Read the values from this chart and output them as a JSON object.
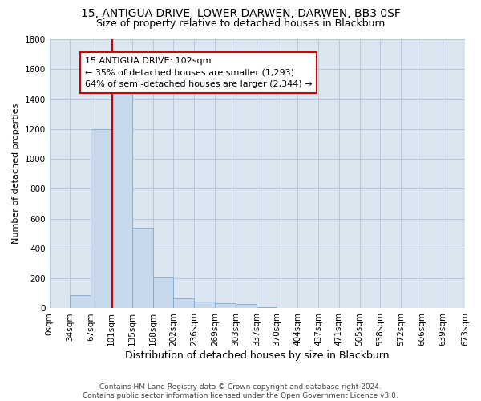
{
  "title1": "15, ANTIGUA DRIVE, LOWER DARWEN, DARWEN, BB3 0SF",
  "title2": "Size of property relative to detached houses in Blackburn",
  "xlabel": "Distribution of detached houses by size in Blackburn",
  "ylabel": "Number of detached properties",
  "bin_edges": [
    0,
    33.5,
    67,
    100.5,
    134,
    167.5,
    201,
    234.5,
    268,
    301.5,
    335,
    368.5,
    402,
    435.5,
    469,
    502.5,
    536,
    569.5,
    603,
    636.5,
    673
  ],
  "bin_labels": [
    "0sqm",
    "34sqm",
    "67sqm",
    "101sqm",
    "135sqm",
    "168sqm",
    "202sqm",
    "236sqm",
    "269sqm",
    "303sqm",
    "337sqm",
    "370sqm",
    "404sqm",
    "437sqm",
    "471sqm",
    "505sqm",
    "538sqm",
    "572sqm",
    "606sqm",
    "639sqm",
    "673sqm"
  ],
  "bar_values": [
    0,
    90,
    1200,
    1475,
    540,
    205,
    65,
    47,
    35,
    28,
    10,
    5,
    3,
    2,
    1,
    1,
    0,
    0,
    0,
    0
  ],
  "bar_color": "#c9d9ed",
  "bar_edge_color": "#7fa8cc",
  "grid_color": "#b8c8dc",
  "bg_color": "#dce6f1",
  "property_line_x": 102,
  "property_line_color": "#cc0000",
  "annotation_line1": "15 ANTIGUA DRIVE: 102sqm",
  "annotation_line2": "← 35% of detached houses are smaller (1,293)",
  "annotation_line3": "64% of semi-detached houses are larger (2,344) →",
  "annotation_box_color": "#cc0000",
  "ylim": [
    0,
    1800
  ],
  "yticks": [
    0,
    200,
    400,
    600,
    800,
    1000,
    1200,
    1400,
    1600,
    1800
  ],
  "footer": "Contains HM Land Registry data © Crown copyright and database right 2024.\nContains public sector information licensed under the Open Government Licence v3.0.",
  "title1_fontsize": 10,
  "title2_fontsize": 9,
  "xlabel_fontsize": 9,
  "ylabel_fontsize": 8,
  "tick_fontsize": 7.5,
  "annotation_fontsize": 8,
  "footer_fontsize": 6.5
}
